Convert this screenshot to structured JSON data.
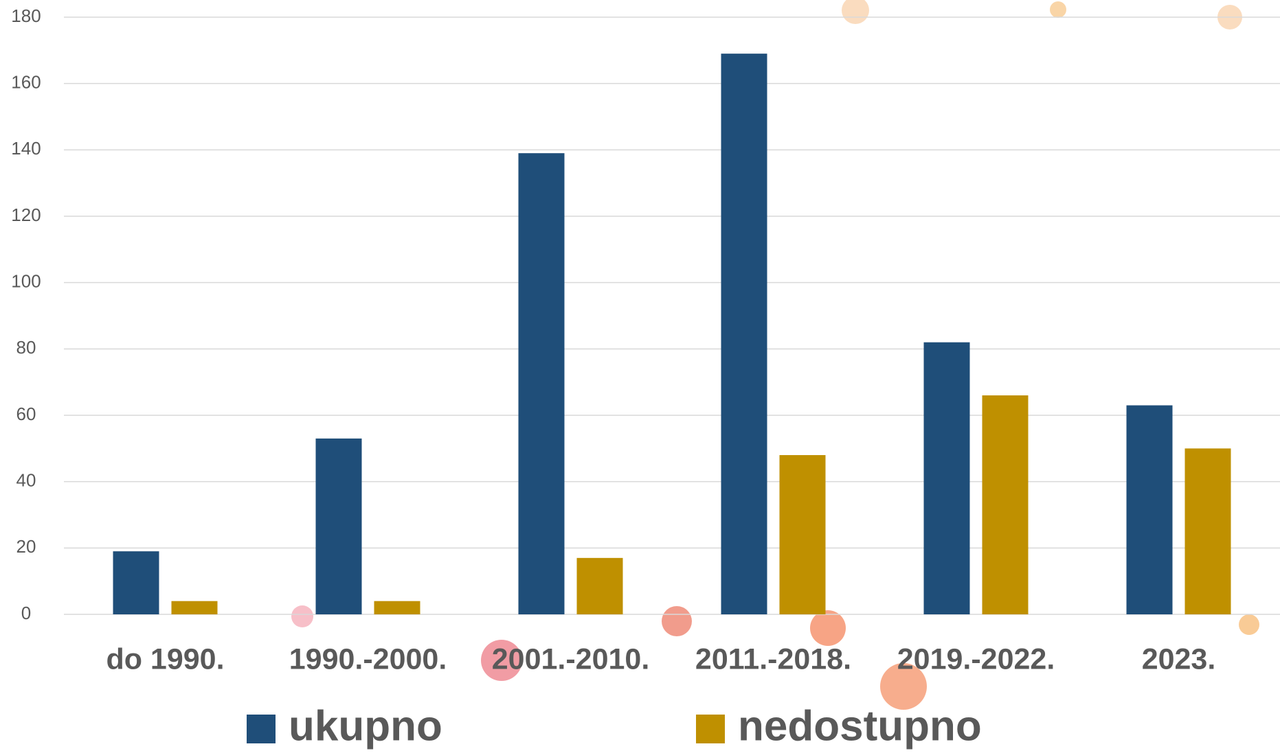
{
  "chart_data": {
    "type": "bar",
    "categories": [
      "do 1990.",
      "1990.-2000.",
      "2001.-2010.",
      "2011.-2018.",
      "2019.-2022.",
      "2023."
    ],
    "series": [
      {
        "name": "ukupno",
        "color": "#1f4e79",
        "values": [
          19,
          53,
          139,
          169,
          82,
          63
        ]
      },
      {
        "name": "nedostupno",
        "color": "#bf9000",
        "values": [
          4,
          4,
          17,
          48,
          66,
          50
        ]
      }
    ],
    "ylim": [
      0,
      180
    ],
    "yticks": [
      0,
      20,
      40,
      60,
      80,
      100,
      120,
      140,
      160,
      180
    ],
    "grid": true,
    "legend": "bottom"
  }
}
